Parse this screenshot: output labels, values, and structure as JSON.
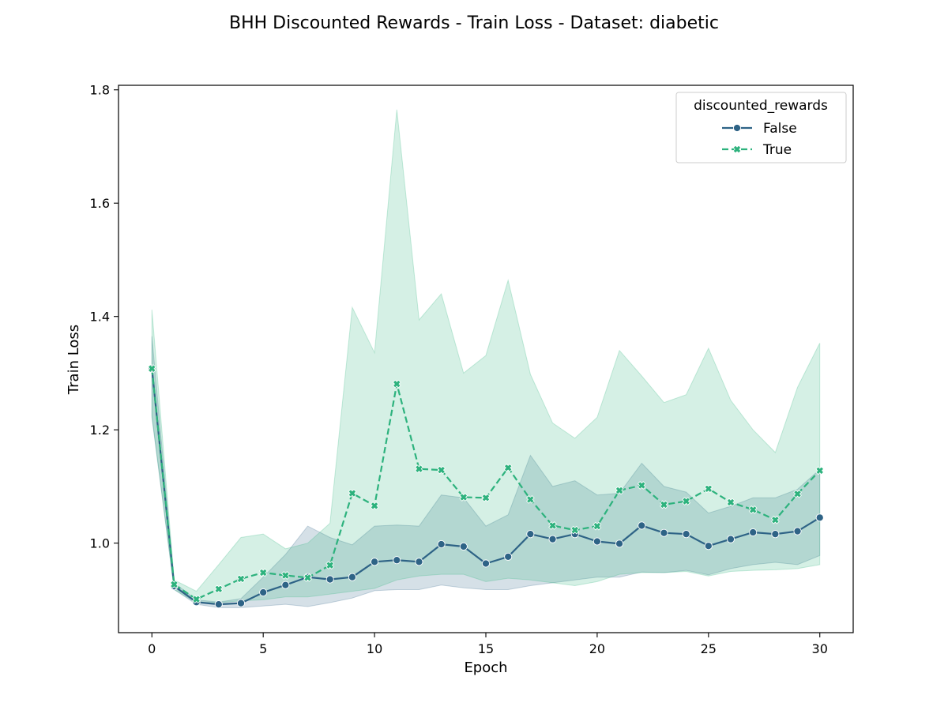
{
  "chart_data": {
    "type": "line",
    "title": "BHH Discounted Rewards - Train Loss - Dataset: diabetic",
    "xlabel": "Epoch",
    "ylabel": "Train Loss",
    "xlim": [
      -1.5,
      31.5
    ],
    "ylim": [
      0.842,
      1.808
    ],
    "xticks": [
      0,
      5,
      10,
      15,
      20,
      25,
      30
    ],
    "yticks": [
      1.0,
      1.2,
      1.4,
      1.6,
      1.8
    ],
    "ytick_labels": [
      "1.0",
      "1.2",
      "1.4",
      "1.6",
      "1.8"
    ],
    "grid": false,
    "legend": {
      "title": "discounted_rewards",
      "position": "top-right"
    },
    "x": [
      0,
      1,
      2,
      3,
      4,
      5,
      6,
      7,
      8,
      9,
      10,
      11,
      12,
      13,
      14,
      15,
      16,
      17,
      18,
      19,
      20,
      21,
      22,
      23,
      24,
      25,
      26,
      27,
      28,
      29,
      30
    ],
    "series": [
      {
        "name": "False",
        "color": "#2e6386",
        "marker": "circle",
        "linestyle": "solid",
        "values": [
          1.308,
          0.924,
          0.896,
          0.892,
          0.894,
          0.913,
          0.926,
          0.94,
          0.936,
          0.94,
          0.967,
          0.97,
          0.967,
          0.998,
          0.994,
          0.964,
          0.976,
          1.016,
          1.007,
          1.016,
          1.003,
          0.999,
          1.031,
          1.018,
          1.016,
          0.995,
          1.007,
          1.019,
          1.016,
          1.021,
          1.045
        ],
        "ci_lower": [
          1.222,
          0.918,
          0.892,
          0.886,
          0.886,
          0.889,
          0.892,
          0.888,
          0.895,
          0.903,
          0.916,
          0.918,
          0.918,
          0.926,
          0.921,
          0.918,
          0.918,
          0.925,
          0.93,
          0.935,
          0.94,
          0.94,
          0.949,
          0.948,
          0.952,
          0.944,
          0.955,
          0.962,
          0.966,
          0.962,
          0.978
        ],
        "ci_upper": [
          1.365,
          0.93,
          0.9,
          0.896,
          0.902,
          0.94,
          0.98,
          1.03,
          1.01,
          0.997,
          1.03,
          1.032,
          1.03,
          1.085,
          1.08,
          1.03,
          1.05,
          1.155,
          1.1,
          1.11,
          1.085,
          1.088,
          1.141,
          1.1,
          1.09,
          1.053,
          1.065,
          1.08,
          1.08,
          1.095,
          1.13
        ]
      },
      {
        "name": "True",
        "color": "#2db27d",
        "marker": "x",
        "linestyle": "dashed",
        "values": [
          1.308,
          0.927,
          0.901,
          0.919,
          0.937,
          0.948,
          0.943,
          0.939,
          0.961,
          1.088,
          1.066,
          1.281,
          1.131,
          1.129,
          1.081,
          1.08,
          1.133,
          1.077,
          1.031,
          1.023,
          1.03,
          1.093,
          1.102,
          1.068,
          1.074,
          1.096,
          1.072,
          1.059,
          1.041,
          1.087,
          1.128
        ],
        "ci_lower": [
          1.225,
          0.918,
          0.895,
          0.895,
          0.898,
          0.9,
          0.905,
          0.905,
          0.91,
          0.915,
          0.92,
          0.935,
          0.942,
          0.945,
          0.945,
          0.932,
          0.938,
          0.935,
          0.93,
          0.925,
          0.932,
          0.945,
          0.948,
          0.948,
          0.95,
          0.942,
          0.95,
          0.952,
          0.953,
          0.955,
          0.962
        ],
        "ci_upper": [
          1.412,
          0.935,
          0.915,
          0.962,
          1.01,
          1.016,
          0.99,
          1.0,
          1.035,
          1.416,
          1.336,
          1.765,
          1.394,
          1.44,
          1.3,
          1.331,
          1.464,
          1.298,
          1.212,
          1.185,
          1.222,
          1.34,
          1.295,
          1.248,
          1.262,
          1.344,
          1.252,
          1.2,
          1.16,
          1.275,
          1.353
        ]
      }
    ]
  }
}
